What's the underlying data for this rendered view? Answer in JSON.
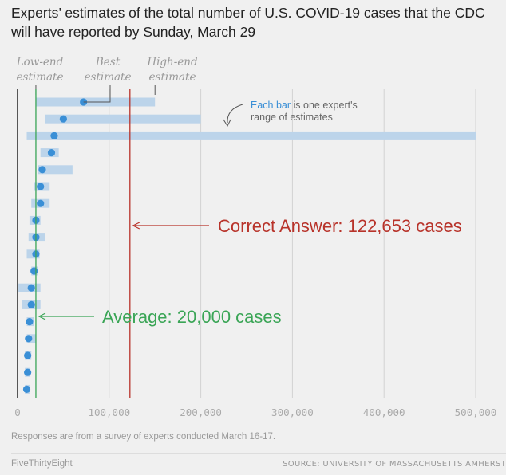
{
  "title": "Experts’ estimates of the total number of U.S. COVID-19 cases that the CDC will have reported by Sunday, March 29",
  "footnote": "Responses are from a survey of experts conducted March 16-17.",
  "brand": "FiveThirtyEight",
  "source": "SOURCE: UNIVERSITY OF MASSACHUSETTS AMHERST",
  "colors": {
    "bar": "#bcd4ea",
    "dot": "#3a8fd6",
    "grid": "#d2d2d2",
    "axis": "#222222",
    "correct": "#b8332a",
    "average": "#3aa556",
    "tick_text": "#aaaaaa",
    "legend_text": "#999999",
    "annotation_text": "#666666",
    "annotation_highlight": "#3a8fd6"
  },
  "chart_data": {
    "type": "bar",
    "orientation": "horizontal range bars with best-estimate dots",
    "xlim": [
      0,
      500000
    ],
    "xticks": [
      0,
      100000,
      200000,
      300000,
      400000,
      500000
    ],
    "xtick_labels": [
      "0",
      "100,000",
      "200,000",
      "300,000",
      "400,000",
      "500,000"
    ],
    "grid": true,
    "legend_labels": {
      "low": [
        "Low-end",
        "estimate"
      ],
      "best": [
        "Best",
        "estimate"
      ],
      "high": [
        "High-end",
        "estimate"
      ]
    },
    "experts": [
      {
        "low": 20000,
        "best": 72000,
        "high": 150000
      },
      {
        "low": 30000,
        "best": 50000,
        "high": 200000
      },
      {
        "low": 10000,
        "best": 40000,
        "high": 500000
      },
      {
        "low": 25000,
        "best": 37000,
        "high": 45000
      },
      {
        "low": 22000,
        "best": 27000,
        "high": 60000
      },
      {
        "low": 18000,
        "best": 25000,
        "high": 35000
      },
      {
        "low": 15000,
        "best": 25000,
        "high": 35000
      },
      {
        "low": 13000,
        "best": 20000,
        "high": 25000
      },
      {
        "low": 12000,
        "best": 20000,
        "high": 30000
      },
      {
        "low": 10000,
        "best": 20000,
        "high": 24000
      },
      {
        "low": 15000,
        "best": 18000,
        "high": 22000
      },
      {
        "low": 1000,
        "best": 15000,
        "high": 25000
      },
      {
        "low": 5000,
        "best": 15000,
        "high": 25000
      },
      {
        "low": 10000,
        "best": 13000,
        "high": 18000
      },
      {
        "low": 10000,
        "best": 12000,
        "high": 20000
      },
      {
        "low": 8000,
        "best": 11000,
        "high": 15000
      },
      {
        "low": 8000,
        "best": 11000,
        "high": 14000
      },
      {
        "low": 8000,
        "best": 10000,
        "high": 13000
      }
    ],
    "annotation": {
      "highlight": "Each bar",
      "rest_line1": " is one expert's",
      "line2": "range of estimates"
    },
    "reference_lines": [
      {
        "name": "correct",
        "value": 122653,
        "label": "Correct Answer: 122,653 cases"
      },
      {
        "name": "average",
        "value": 20000,
        "label": "Average: 20,000 cases"
      }
    ]
  }
}
